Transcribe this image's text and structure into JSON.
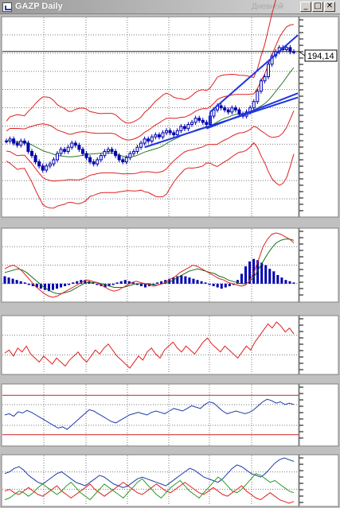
{
  "window": {
    "title": "GAZP Daily",
    "faded_title": "Дневной",
    "buttons": {
      "minimize": "_",
      "maximize": "□",
      "close": "✕"
    }
  },
  "colors": {
    "plot_bg": "#ffffff",
    "frame_bg": "#c0c0c0",
    "grid": "#7a7a7a",
    "candle": "#0000b0",
    "trendline": "#1f35e0",
    "bollinger": "#e02020",
    "moving_avg": "#2a7a2a",
    "macd_signal": "#1a6a1a",
    "level": "#cc2020",
    "adx": "#1a3aa8",
    "dmi_plus": "#2a9a2a"
  },
  "price_label": "194,14",
  "chart_data": [
    {
      "type": "candlestick",
      "title": "GAZP Daily",
      "last_price": 194.14,
      "overlays": [
        "bollinger-bands-outer",
        "bollinger-bands-inner",
        "moving-average",
        "trendlines"
      ],
      "close": [
        151,
        152,
        150,
        149,
        151,
        150,
        146,
        144,
        141,
        139,
        137,
        139,
        140,
        142,
        145,
        147,
        146,
        148,
        150,
        149,
        147,
        145,
        143,
        141,
        140,
        142,
        144,
        146,
        147,
        146,
        144,
        142,
        141,
        143,
        145,
        146,
        148,
        150,
        152,
        151,
        153,
        154,
        153,
        155,
        156,
        155,
        154,
        156,
        158,
        157,
        159,
        160,
        162,
        161,
        160,
        159,
        163,
        166,
        168,
        167,
        166,
        165,
        167,
        166,
        164,
        163,
        165,
        167,
        170,
        175,
        180,
        182,
        188,
        192,
        194,
        196,
        195,
        196,
        194,
        194
      ]
    },
    {
      "type": "line+bar",
      "panel": "macd",
      "histogram": [
        0.6,
        0.5,
        0.4,
        0.3,
        0.2,
        0.1,
        -0.1,
        -0.2,
        -0.3,
        -0.4,
        -0.5,
        -0.6,
        -0.5,
        -0.4,
        -0.3,
        -0.2,
        -0.1,
        0.1,
        0.2,
        0.3,
        0.3,
        0.2,
        0.1,
        -0.1,
        -0.2,
        -0.3,
        -0.2,
        -0.1,
        0.1,
        0.2,
        0.3,
        0.2,
        0.1,
        -0.1,
        -0.2,
        -0.3,
        -0.2,
        -0.1,
        0.1,
        0.2,
        0.3,
        0.4,
        0.5,
        0.6,
        0.7,
        0.6,
        0.5,
        0.4,
        0.3,
        0.2,
        0.1,
        -0.1,
        -0.2,
        -0.3,
        -0.4,
        -0.3,
        -0.2,
        -0.1,
        0.3,
        0.8,
        1.4,
        1.8,
        2.0,
        1.9,
        1.7,
        1.5,
        1.2,
        1.0,
        0.7,
        0.5,
        0.3,
        0.2,
        0.1
      ],
      "macd": [
        1.2,
        1.4,
        1.5,
        1.3,
        1.0,
        0.6,
        0.2,
        -0.2,
        -0.5,
        -0.8,
        -1.0,
        -1.1,
        -1.0,
        -0.8,
        -0.6,
        -0.4,
        -0.2,
        0.0,
        0.2,
        0.3,
        0.2,
        0.1,
        -0.1,
        -0.3,
        -0.5,
        -0.6,
        -0.5,
        -0.3,
        -0.1,
        0.1,
        0.2,
        0.1,
        0.0,
        -0.1,
        -0.2,
        -0.1,
        0.0,
        0.2,
        0.4,
        0.6,
        0.9,
        1.1,
        1.3,
        1.5,
        1.4,
        1.2,
        1.0,
        0.8,
        0.6,
        0.4,
        0.3,
        0.1,
        0.0,
        -0.1,
        -0.2,
        -0.1,
        0.3,
        1.0,
        2.0,
        3.0,
        3.6,
        4.0,
        4.1,
        4.0,
        3.8,
        3.6,
        3.3
      ],
      "signal": [
        0.9,
        1.0,
        1.1,
        1.2,
        1.1,
        0.9,
        0.6,
        0.3,
        0.0,
        -0.3,
        -0.5,
        -0.7,
        -0.8,
        -0.8,
        -0.7,
        -0.6,
        -0.4,
        -0.2,
        0.0,
        0.1,
        0.1,
        0.1,
        0.0,
        -0.1,
        -0.2,
        -0.3,
        -0.3,
        -0.3,
        -0.2,
        -0.1,
        0.0,
        0.0,
        0.0,
        0.0,
        -0.1,
        -0.1,
        0.0,
        0.1,
        0.2,
        0.4,
        0.6,
        0.8,
        1.0,
        1.1,
        1.2,
        1.1,
        1.0,
        0.9,
        0.8,
        0.6,
        0.5,
        0.3,
        0.2,
        0.1,
        0.0,
        0.0,
        0.2,
        0.6,
        1.2,
        1.8,
        2.4,
        2.9,
        3.3,
        3.5,
        3.6,
        3.6,
        3.5
      ]
    },
    {
      "type": "line",
      "panel": "oscillator-red",
      "values": [
        55,
        58,
        52,
        60,
        56,
        62,
        54,
        50,
        46,
        52,
        48,
        44,
        50,
        46,
        42,
        48,
        52,
        56,
        50,
        46,
        52,
        58,
        54,
        60,
        64,
        58,
        52,
        48,
        44,
        40,
        46,
        52,
        48,
        56,
        60,
        54,
        50,
        58,
        62,
        66,
        60,
        56,
        62,
        58,
        54,
        60,
        66,
        70,
        64,
        60,
        56,
        62,
        58,
        54,
        50,
        56,
        62,
        58,
        66,
        72,
        78,
        84,
        80,
        86,
        82,
        76,
        80,
        74
      ]
    },
    {
      "type": "line",
      "panel": "oscillator-blue",
      "levels": [
        "upper",
        "lower"
      ],
      "values": [
        40,
        42,
        38,
        45,
        43,
        47,
        44,
        40,
        36,
        32,
        28,
        24,
        20,
        22,
        18,
        24,
        30,
        36,
        42,
        48,
        46,
        42,
        38,
        34,
        30,
        28,
        32,
        36,
        40,
        42,
        44,
        42,
        40,
        44,
        46,
        44,
        42,
        46,
        50,
        48,
        46,
        50,
        54,
        52,
        50,
        56,
        60,
        58,
        52,
        46,
        42,
        44,
        46,
        44,
        42,
        44,
        48,
        54,
        60,
        64,
        62,
        58,
        60,
        56,
        58,
        56
      ]
    },
    {
      "type": "line",
      "panel": "dmi",
      "series": [
        {
          "values": [
            50,
            52,
            56,
            58,
            54,
            48,
            44,
            40,
            38,
            42,
            46,
            50,
            52,
            48,
            44,
            40,
            38,
            36,
            40,
            44,
            48,
            46,
            42,
            38,
            36,
            34,
            36,
            40,
            44,
            46,
            44,
            42,
            40,
            38,
            36,
            40,
            44,
            48,
            52,
            56,
            54,
            50,
            46,
            44,
            42,
            40,
            44,
            50,
            56,
            60,
            58,
            54,
            50,
            48,
            46,
            50,
            56,
            62,
            66,
            68,
            66,
            64
          ]
        },
        {
          "values": [
            30,
            32,
            28,
            26,
            30,
            34,
            30,
            26,
            24,
            28,
            32,
            36,
            30,
            26,
            22,
            26,
            30,
            34,
            38,
            32,
            28,
            24,
            28,
            32,
            36,
            40,
            36,
            32,
            28,
            26,
            30,
            34,
            38,
            34,
            30,
            28,
            32,
            36,
            40,
            36,
            32,
            28,
            26,
            30,
            34,
            30,
            26,
            24,
            28,
            32,
            36,
            30,
            26,
            22,
            20,
            24,
            28,
            24,
            20,
            18,
            16,
            18
          ]
        },
        {
          "values": [
            20,
            22,
            26,
            30,
            28,
            24,
            28,
            34,
            38,
            34,
            30,
            26,
            30,
            36,
            40,
            34,
            28,
            24,
            20,
            26,
            32,
            38,
            34,
            30,
            26,
            22,
            28,
            34,
            40,
            44,
            38,
            32,
            26,
            22,
            28,
            34,
            38,
            42,
            36,
            30,
            26,
            22,
            28,
            34,
            40,
            46,
            42,
            36,
            30,
            28,
            32,
            38,
            44,
            50,
            48,
            44,
            40,
            42,
            38,
            34,
            30,
            28
          ]
        }
      ]
    }
  ]
}
